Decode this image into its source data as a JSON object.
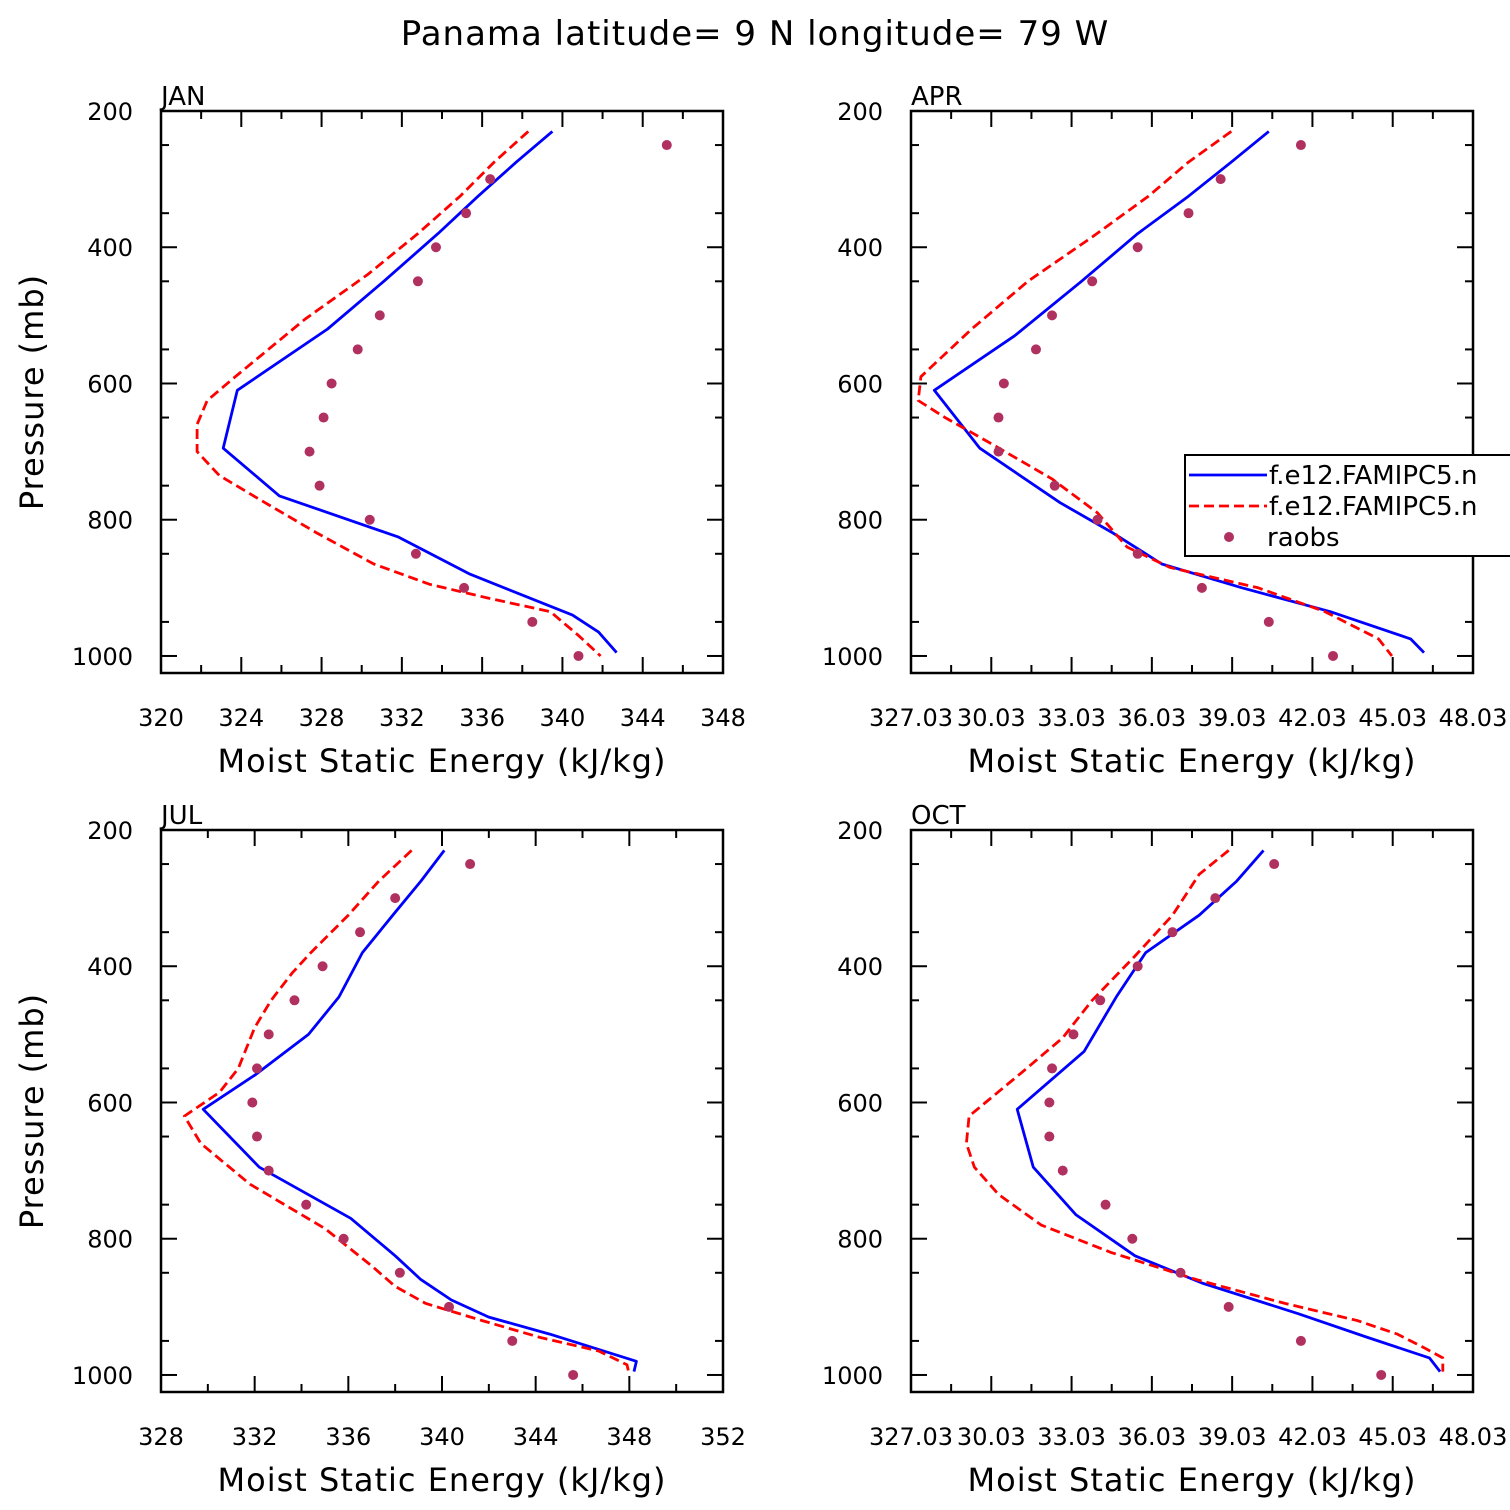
{
  "figure": {
    "title": "Panama  latitude= 9 N longitude= 79 W"
  },
  "chart_data": [
    {
      "type": "line",
      "panel": "JAN",
      "xlabel": "Moist Static Energy (kJ/kg)",
      "ylabel": "Pressure (mb)",
      "xlim": [
        320,
        348
      ],
      "ylim": [
        1025,
        200
      ],
      "y_inverted": true,
      "xticks": [
        320,
        324,
        328,
        332,
        336,
        340,
        344,
        348
      ],
      "xtick_labels": [
        "320",
        "324",
        "328",
        "332",
        "336",
        "340",
        "344",
        "348"
      ],
      "yticks": [
        200,
        400,
        600,
        800,
        1000
      ],
      "ytick_labels": [
        "200",
        "400",
        "600",
        "800",
        "1000"
      ],
      "legend": null,
      "series": [
        {
          "name": "",
          "style": "solid",
          "color": "#0000ff",
          "x": [
            339.5,
            337.7,
            335.8,
            333.8,
            331.1,
            328.3,
            323.8,
            323.1,
            325.9,
            331.8,
            335.4,
            340.5,
            341.8,
            342.7
          ],
          "y": [
            230,
            275,
            325,
            380,
            450,
            520,
            610,
            695,
            765,
            825,
            880,
            940,
            965,
            995
          ]
        },
        {
          "name": "",
          "style": "dashed",
          "color": "#ff0000",
          "x": [
            338.3,
            336.6,
            334.9,
            332.8,
            330.3,
            327.2,
            323.7,
            322.3,
            321.8,
            321.8,
            322.9,
            324.9,
            327.8,
            330.6,
            333.4,
            336.3,
            339.4,
            340.8,
            341.9
          ],
          "y": [
            230,
            275,
            325,
            380,
            440,
            505,
            590,
            625,
            660,
            700,
            735,
            770,
            820,
            865,
            895,
            915,
            935,
            970,
            1000
          ]
        },
        {
          "name": "",
          "style": "markers",
          "color": "#b03060",
          "x": [
            345.2,
            336.4,
            335.2,
            333.7,
            332.8,
            330.9,
            329.8,
            328.5,
            328.1,
            327.4,
            327.9,
            330.4,
            332.7,
            335.1,
            338.5,
            340.8
          ],
          "y": [
            250,
            300,
            350,
            400,
            450,
            500,
            550,
            600,
            650,
            700,
            750,
            800,
            850,
            900,
            950,
            1000
          ]
        }
      ]
    },
    {
      "type": "line",
      "panel": "APR",
      "xlabel": "Moist Static Energy (kJ/kg)",
      "ylabel": "",
      "xlim": [
        327.03,
        348.03
      ],
      "ylim": [
        1025,
        200
      ],
      "y_inverted": true,
      "xticks": [
        327.03,
        330.03,
        333.03,
        336.03,
        339.03,
        342.03,
        345.03,
        348.03
      ],
      "xtick_labels": [
        "327.03",
        "30.03",
        "33.03",
        "36.03",
        "39.03",
        "42.03",
        "45.03",
        "48.03"
      ],
      "yticks": [
        200,
        400,
        600,
        800,
        1000
      ],
      "ytick_labels": [
        "200",
        "400",
        "600",
        "800",
        "1000"
      ],
      "legend": {
        "position": "right",
        "entries": [
          {
            "label": "f.e12.FAMIPC5.n",
            "style": "solid",
            "color": "#0000ff"
          },
          {
            "label": "f.e12.FAMIPC5.n",
            "style": "dashed",
            "color": "#ff0000"
          },
          {
            "label": "raobs",
            "style": "markers",
            "color": "#b03060"
          }
        ]
      },
      "series": [
        {
          "name": "",
          "style": "solid",
          "color": "#0000ff",
          "x": [
            340.4,
            339.0,
            337.4,
            335.5,
            333.4,
            330.9,
            327.9,
            329.6,
            332.6,
            334.6,
            336.4,
            339.4,
            342.7,
            345.7,
            346.2
          ],
          "y": [
            230,
            275,
            325,
            380,
            450,
            530,
            610,
            695,
            775,
            820,
            865,
            900,
            935,
            975,
            995
          ]
        },
        {
          "name": "",
          "style": "dashed",
          "color": "#ff0000",
          "x": [
            339.0,
            337.4,
            335.9,
            333.8,
            331.4,
            329.3,
            327.4,
            327.3,
            328.3,
            330.1,
            332.3,
            334.0,
            335.1,
            336.7,
            340.0,
            342.5,
            344.5,
            345.0
          ],
          "y": [
            230,
            275,
            325,
            385,
            450,
            520,
            590,
            625,
            650,
            690,
            740,
            790,
            840,
            870,
            900,
            935,
            975,
            1000
          ]
        },
        {
          "name": "",
          "style": "markers",
          "color": "#b03060",
          "x": [
            341.6,
            338.6,
            337.4,
            335.5,
            333.8,
            332.3,
            331.7,
            330.5,
            330.3,
            330.3,
            332.4,
            334.0,
            335.5,
            337.9,
            340.4,
            342.8
          ],
          "y": [
            250,
            300,
            350,
            400,
            450,
            500,
            550,
            600,
            650,
            700,
            750,
            800,
            850,
            900,
            950,
            1000
          ]
        }
      ]
    },
    {
      "type": "line",
      "panel": "JUL",
      "xlabel": "Moist Static Energy (kJ/kg)",
      "ylabel": "Pressure (mb)",
      "xlim": [
        328,
        352
      ],
      "ylim": [
        1025,
        200
      ],
      "y_inverted": true,
      "xticks": [
        328,
        332,
        336,
        340,
        344,
        348,
        352
      ],
      "xtick_labels": [
        "328",
        "332",
        "336",
        "340",
        "344",
        "348",
        "352"
      ],
      "yticks": [
        200,
        400,
        600,
        800,
        1000
      ],
      "ytick_labels": [
        "200",
        "400",
        "600",
        "800",
        "1000"
      ],
      "legend": null,
      "series": [
        {
          "name": "",
          "style": "solid",
          "color": "#0000ff",
          "x": [
            340.1,
            339.1,
            337.9,
            336.6,
            335.6,
            334.3,
            332.0,
            329.8,
            332.2,
            336.1,
            338.0,
            339.1,
            340.4,
            342.0,
            344.6,
            348.3,
            348.2
          ],
          "y": [
            230,
            275,
            325,
            380,
            445,
            500,
            560,
            610,
            695,
            770,
            825,
            860,
            890,
            915,
            940,
            980,
            995
          ]
        },
        {
          "name": "",
          "style": "dashed",
          "color": "#ff0000",
          "x": [
            338.7,
            337.3,
            336.0,
            334.4,
            333.6,
            332.7,
            332.0,
            331.3,
            330.5,
            329.0,
            329.7,
            331.8,
            335.0,
            337.0,
            338.0,
            339.3,
            341.7,
            344.2,
            346.7,
            347.9,
            348.0
          ],
          "y": [
            230,
            275,
            325,
            380,
            410,
            450,
            490,
            550,
            585,
            620,
            660,
            720,
            785,
            840,
            870,
            895,
            920,
            945,
            965,
            985,
            1000
          ]
        },
        {
          "name": "",
          "style": "markers",
          "color": "#b03060",
          "x": [
            341.2,
            338.0,
            336.5,
            334.9,
            333.7,
            332.6,
            332.1,
            331.9,
            332.1,
            332.6,
            334.2,
            335.8,
            338.2,
            340.3,
            343.0,
            345.6
          ],
          "y": [
            250,
            300,
            350,
            400,
            450,
            500,
            550,
            600,
            650,
            700,
            750,
            800,
            850,
            900,
            950,
            1000
          ]
        }
      ]
    },
    {
      "type": "line",
      "panel": "OCT",
      "xlabel": "Moist Static Energy (kJ/kg)",
      "ylabel": "",
      "xlim": [
        327.03,
        348.03
      ],
      "ylim": [
        1025,
        200
      ],
      "y_inverted": true,
      "xticks": [
        327.03,
        330.03,
        333.03,
        336.03,
        339.03,
        342.03,
        345.03,
        348.03
      ],
      "xtick_labels": [
        "327.03",
        "30.03",
        "33.03",
        "36.03",
        "39.03",
        "42.03",
        "45.03",
        "48.03"
      ],
      "yticks": [
        200,
        400,
        600,
        800,
        1000
      ],
      "ytick_labels": [
        "200",
        "400",
        "600",
        "800",
        "1000"
      ],
      "legend": null,
      "series": [
        {
          "name": "",
          "style": "solid",
          "color": "#0000ff",
          "x": [
            340.2,
            339.2,
            337.8,
            335.8,
            334.7,
            333.5,
            331.0,
            331.6,
            333.2,
            335.4,
            337.9,
            341.5,
            344.1,
            346.4,
            346.8
          ],
          "y": [
            230,
            275,
            325,
            380,
            445,
            525,
            610,
            695,
            765,
            825,
            865,
            910,
            945,
            975,
            995
          ]
        },
        {
          "name": "",
          "style": "dashed",
          "color": "#ff0000",
          "x": [
            338.9,
            337.8,
            336.8,
            335.4,
            333.8,
            332.7,
            331.2,
            329.2,
            329.1,
            329.4,
            330.3,
            331.9,
            334.5,
            337.7,
            341.0,
            343.7,
            345.2,
            346.2,
            346.9,
            346.9
          ],
          "y": [
            230,
            265,
            325,
            385,
            450,
            505,
            555,
            620,
            660,
            695,
            735,
            780,
            820,
            860,
            895,
            920,
            940,
            960,
            975,
            995
          ]
        },
        {
          "name": "",
          "style": "markers",
          "color": "#b03060",
          "x": [
            340.6,
            338.4,
            336.8,
            335.5,
            334.1,
            333.1,
            332.3,
            332.2,
            332.2,
            332.7,
            334.3,
            335.3,
            337.1,
            338.9,
            341.6,
            344.6
          ],
          "y": [
            250,
            300,
            350,
            400,
            450,
            500,
            550,
            600,
            650,
            700,
            750,
            800,
            850,
            900,
            950,
            1000
          ]
        }
      ]
    }
  ]
}
